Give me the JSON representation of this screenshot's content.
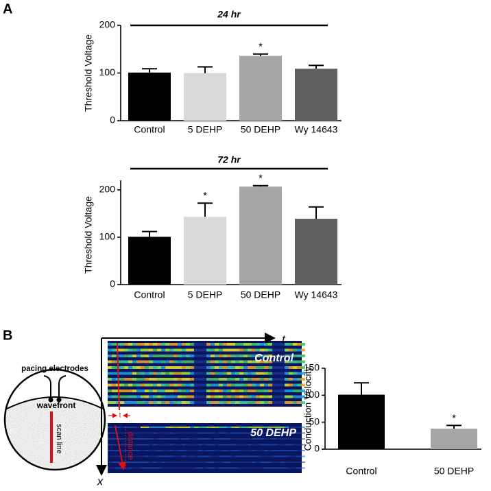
{
  "panels": {
    "a": "A",
    "b": "B"
  },
  "diagram": {
    "electrodes": "pacing electrodes",
    "wavefront": "wavefront",
    "scan_line": "scan line",
    "control": "Control",
    "treated": "50 DEHP",
    "time_axis": "t",
    "space_axis": "x",
    "distance": "distance",
    "interval": "t"
  },
  "chart_data": [
    {
      "type": "bar",
      "title": "24 hr",
      "ylabel": "Threshold Voltage",
      "categories": [
        "Control",
        "5 DEHP",
        "50 DEHP",
        "Wy 14643"
      ],
      "values": [
        101,
        100,
        136,
        109
      ],
      "errors": [
        8,
        13,
        4,
        7
      ],
      "markers": [
        null,
        null,
        "*",
        null
      ],
      "colors": [
        "#000000",
        "#d9d9d9",
        "#a6a6a8",
        "#606060"
      ],
      "ylim": [
        0,
        200
      ],
      "yticks": [
        0,
        100,
        200
      ]
    },
    {
      "type": "bar",
      "title": "72 hr",
      "ylabel": "Threshold Voltage",
      "categories": [
        "Control",
        "5 DEHP",
        "50 DEHP",
        "Wy 14643"
      ],
      "values": [
        101,
        143,
        207,
        139
      ],
      "errors": [
        11,
        29,
        2,
        25
      ],
      "markers": [
        null,
        "*",
        "*",
        null
      ],
      "colors": [
        "#000000",
        "#d9d9d9",
        "#a6a6a8",
        "#606060"
      ],
      "ylim": [
        0,
        210
      ],
      "yticks": [
        0,
        100,
        200
      ]
    },
    {
      "type": "bar",
      "ylabel": "Conduction  Velocity",
      "categories": [
        "Control",
        "50 DEHP"
      ],
      "values": [
        101,
        38
      ],
      "errors": [
        22,
        6
      ],
      "markers": [
        null,
        "*"
      ],
      "colors": [
        "#000000",
        "#a6a6a8"
      ],
      "ylim": [
        0,
        150
      ],
      "yticks": [
        0,
        50,
        100,
        150
      ]
    }
  ]
}
